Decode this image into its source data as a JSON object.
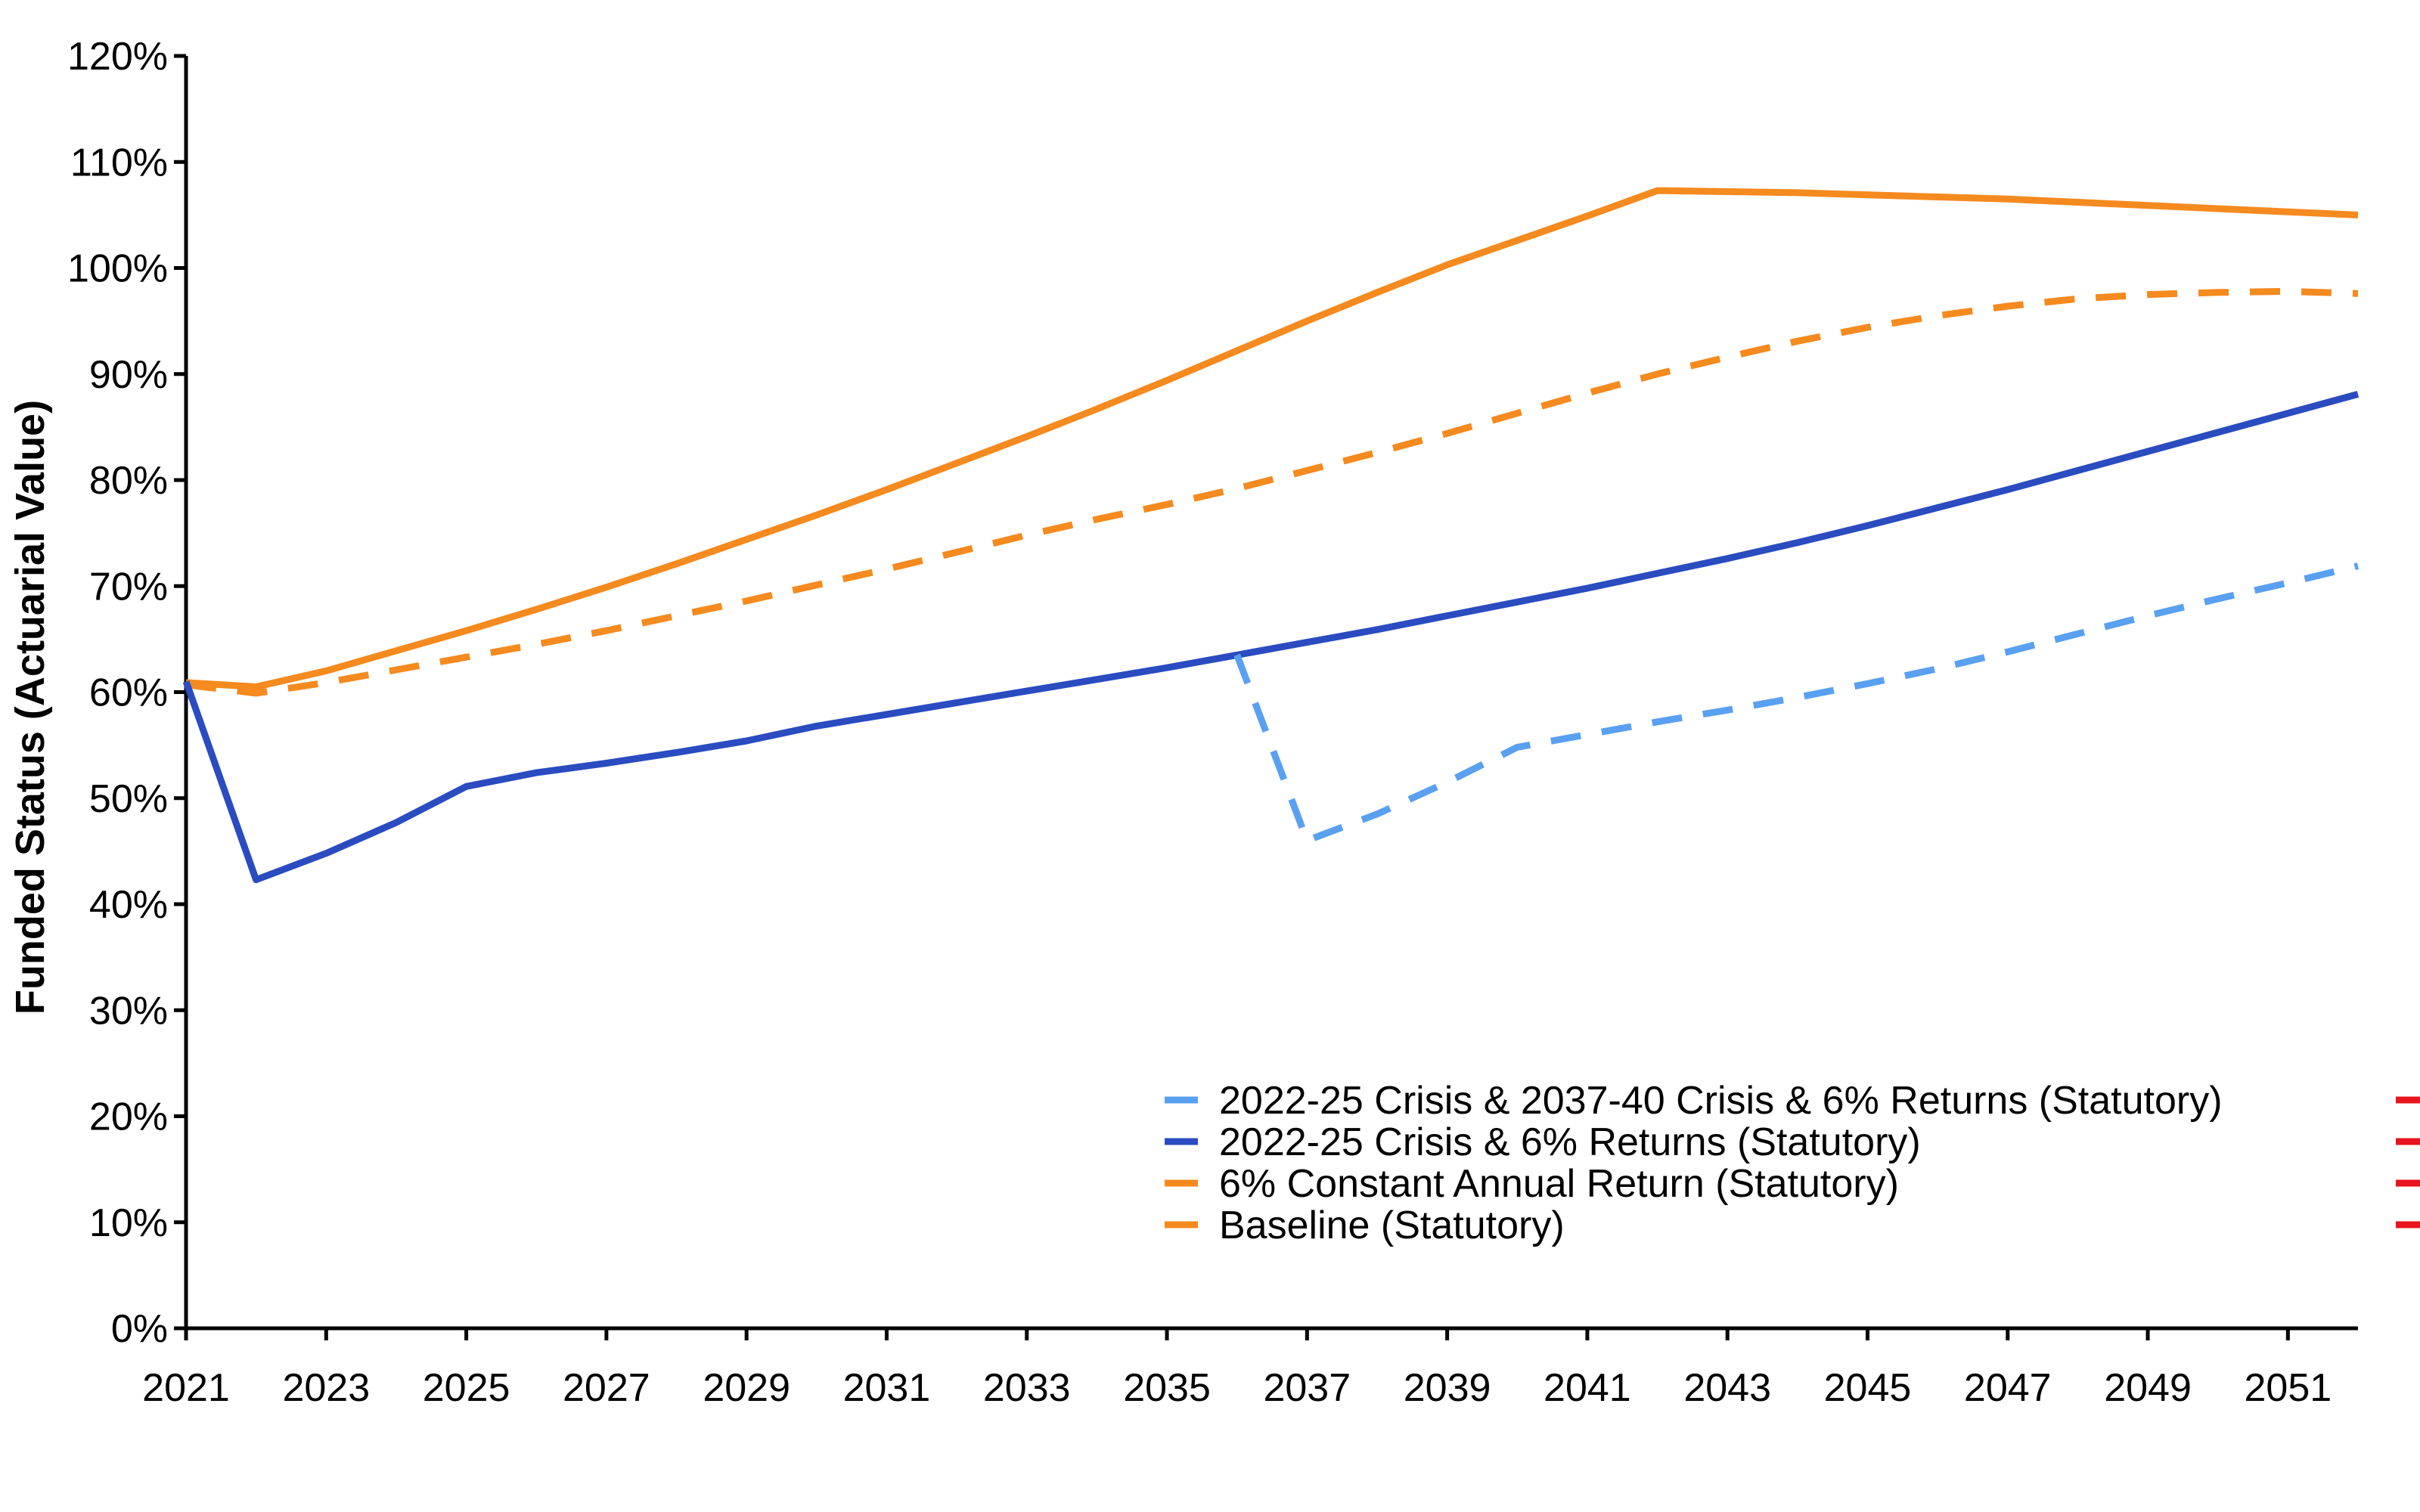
{
  "chart_data": {
    "type": "line",
    "title": "",
    "xlabel": "",
    "ylabel": "Funded Status (Actuarial Value)",
    "xlim": [
      2021,
      2052
    ],
    "ylim": [
      0,
      120
    ],
    "x_ticks": [
      "2021",
      "2023",
      "2025",
      "2027",
      "2029",
      "2031",
      "2033",
      "2035",
      "2037",
      "2039",
      "2041",
      "2043",
      "2045",
      "2047",
      "2049",
      "2051"
    ],
    "y_ticks": [
      "0%",
      "10%",
      "20%",
      "30%",
      "40%",
      "50%",
      "60%",
      "70%",
      "80%",
      "90%",
      "100%",
      "110%",
      "120%"
    ],
    "grid": false,
    "legend_position": "bottom-right",
    "series": [
      {
        "name": "2022-25 Crisis & 2037-40 Crisis & 6% Returns (Statutory)",
        "color": "#5aa0f0",
        "dash": "dashed",
        "points": [
          [
            2036,
            63.5
          ],
          [
            2037,
            46.0
          ],
          [
            2038,
            48.5
          ],
          [
            2039,
            51.5
          ],
          [
            2040,
            54.8
          ],
          [
            2041,
            56.0
          ],
          [
            2042,
            57.2
          ],
          [
            2043,
            58.3
          ],
          [
            2044,
            59.5
          ],
          [
            2045,
            60.8
          ],
          [
            2046,
            62.2
          ],
          [
            2047,
            63.8
          ],
          [
            2048,
            65.5
          ],
          [
            2049,
            67.2
          ],
          [
            2050,
            68.8
          ],
          [
            2051,
            70.3
          ],
          [
            2052,
            71.9
          ]
        ]
      },
      {
        "name": "2022-25 Crisis & 6% Returns (Statutory)",
        "color": "#2a4cc0",
        "dash": "solid",
        "points": [
          [
            2021,
            61.0
          ],
          [
            2022,
            42.3
          ],
          [
            2023,
            44.8
          ],
          [
            2024,
            47.7
          ],
          [
            2025,
            51.1
          ],
          [
            2026,
            52.4
          ],
          [
            2027,
            53.3
          ],
          [
            2028,
            54.3
          ],
          [
            2029,
            55.4
          ],
          [
            2030,
            56.8
          ],
          [
            2031,
            57.9
          ],
          [
            2032,
            59.0
          ],
          [
            2033,
            60.1
          ],
          [
            2034,
            61.2
          ],
          [
            2035,
            62.3
          ],
          [
            2036,
            63.5
          ],
          [
            2037,
            64.7
          ],
          [
            2038,
            65.9
          ],
          [
            2039,
            67.2
          ],
          [
            2040,
            68.5
          ],
          [
            2041,
            69.8
          ],
          [
            2042,
            71.2
          ],
          [
            2043,
            72.6
          ],
          [
            2044,
            74.1
          ],
          [
            2045,
            75.7
          ],
          [
            2046,
            77.4
          ],
          [
            2047,
            79.1
          ],
          [
            2048,
            80.9
          ],
          [
            2049,
            82.7
          ],
          [
            2050,
            84.5
          ],
          [
            2051,
            86.3
          ],
          [
            2052,
            88.1
          ]
        ]
      },
      {
        "name": "6% Constant Annual Return (Statutory)",
        "color": "#f58a1f",
        "dash": "solid",
        "points": [
          [
            2021,
            60.9
          ],
          [
            2022,
            60.5
          ],
          [
            2023,
            62.0
          ],
          [
            2024,
            63.9
          ],
          [
            2025,
            65.8
          ],
          [
            2026,
            67.8
          ],
          [
            2027,
            69.9
          ],
          [
            2028,
            72.1
          ],
          [
            2029,
            74.4
          ],
          [
            2030,
            76.7
          ],
          [
            2031,
            79.1
          ],
          [
            2032,
            81.6
          ],
          [
            2033,
            84.1
          ],
          [
            2034,
            86.7
          ],
          [
            2035,
            89.4
          ],
          [
            2036,
            92.2
          ],
          [
            2037,
            95.0
          ],
          [
            2038,
            97.7
          ],
          [
            2039,
            100.3
          ],
          [
            2040,
            102.6
          ],
          [
            2041,
            104.9
          ],
          [
            2042,
            107.3
          ],
          [
            2043,
            107.2
          ],
          [
            2044,
            107.1
          ],
          [
            2045,
            106.9
          ],
          [
            2046,
            106.7
          ],
          [
            2047,
            106.5
          ],
          [
            2048,
            106.2
          ],
          [
            2049,
            105.9
          ],
          [
            2050,
            105.6
          ],
          [
            2051,
            105.3
          ],
          [
            2052,
            105.0
          ]
        ]
      },
      {
        "name": "Baseline (Statutory)",
        "color": "#f58a1f",
        "dash": "dashed",
        "points": [
          [
            2021,
            60.7
          ],
          [
            2022,
            59.9
          ],
          [
            2023,
            60.9
          ],
          [
            2024,
            62.1
          ],
          [
            2025,
            63.3
          ],
          [
            2026,
            64.5
          ],
          [
            2027,
            65.8
          ],
          [
            2028,
            67.2
          ],
          [
            2029,
            68.6
          ],
          [
            2030,
            70.1
          ],
          [
            2031,
            71.6
          ],
          [
            2032,
            73.2
          ],
          [
            2033,
            74.8
          ],
          [
            2034,
            76.3
          ],
          [
            2035,
            77.7
          ],
          [
            2036,
            79.2
          ],
          [
            2037,
            80.9
          ],
          [
            2038,
            82.6
          ],
          [
            2039,
            84.4
          ],
          [
            2040,
            86.3
          ],
          [
            2041,
            88.2
          ],
          [
            2042,
            90.0
          ],
          [
            2043,
            91.6
          ],
          [
            2044,
            93.1
          ],
          [
            2045,
            94.4
          ],
          [
            2046,
            95.5
          ],
          [
            2047,
            96.4
          ],
          [
            2048,
            97.1
          ],
          [
            2049,
            97.5
          ],
          [
            2050,
            97.7
          ],
          [
            2051,
            97.8
          ],
          [
            2052,
            97.6
          ]
        ]
      }
    ]
  }
}
